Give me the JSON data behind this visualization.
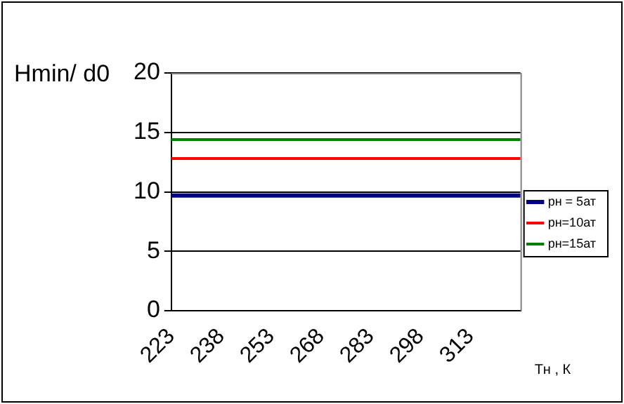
{
  "chart_data": {
    "type": "line",
    "ylabel": "Hmin/ d0",
    "xlabel": "Tн , К",
    "categories": [
      "223",
      "238",
      "253",
      "268",
      "283",
      "298",
      "313",
      null
    ],
    "series": [
      {
        "name": "pн = 5ат",
        "color": "#000080",
        "values": [
          9.7,
          9.7,
          9.7,
          9.7,
          9.7,
          9.7,
          9.7,
          9.7
        ]
      },
      {
        "name": "pн=10ат",
        "color": "#ff0000",
        "values": [
          12.8,
          12.8,
          12.8,
          12.8,
          12.8,
          12.8,
          12.8,
          12.8
        ]
      },
      {
        "name": "pн=15ат",
        "color": "#008000",
        "values": [
          14.4,
          14.4,
          14.4,
          14.4,
          14.4,
          14.4,
          14.4,
          14.4
        ]
      }
    ],
    "ylim": [
      0,
      20
    ],
    "yticks": [
      0,
      5,
      10,
      15,
      20
    ],
    "grid": "y",
    "legend": "right",
    "marker": "none",
    "line_style": "solid"
  }
}
